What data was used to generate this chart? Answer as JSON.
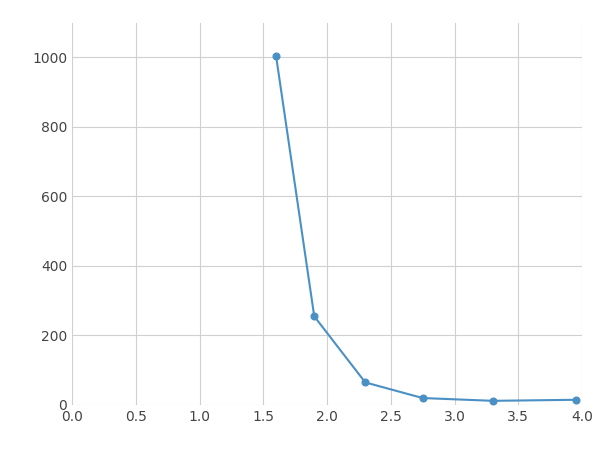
{
  "x": [
    1.6,
    1.9,
    2.3,
    2.75,
    3.3,
    3.95
  ],
  "y": [
    1005,
    255,
    65,
    20,
    12,
    15
  ],
  "line_color": "#4A90C4",
  "marker_color": "#4A90C4",
  "marker_size": 5,
  "line_width": 1.5,
  "xlim": [
    0.0,
    4.0
  ],
  "ylim": [
    0,
    1100
  ],
  "xticks": [
    0.0,
    0.5,
    1.0,
    1.5,
    2.0,
    2.5,
    3.0,
    3.5,
    4.0
  ],
  "yticks": [
    0,
    200,
    400,
    600,
    800,
    1000
  ],
  "grid_color": "#d0d0d0",
  "plot_bg": "#ffffff",
  "figure_bg": "#ffffff"
}
